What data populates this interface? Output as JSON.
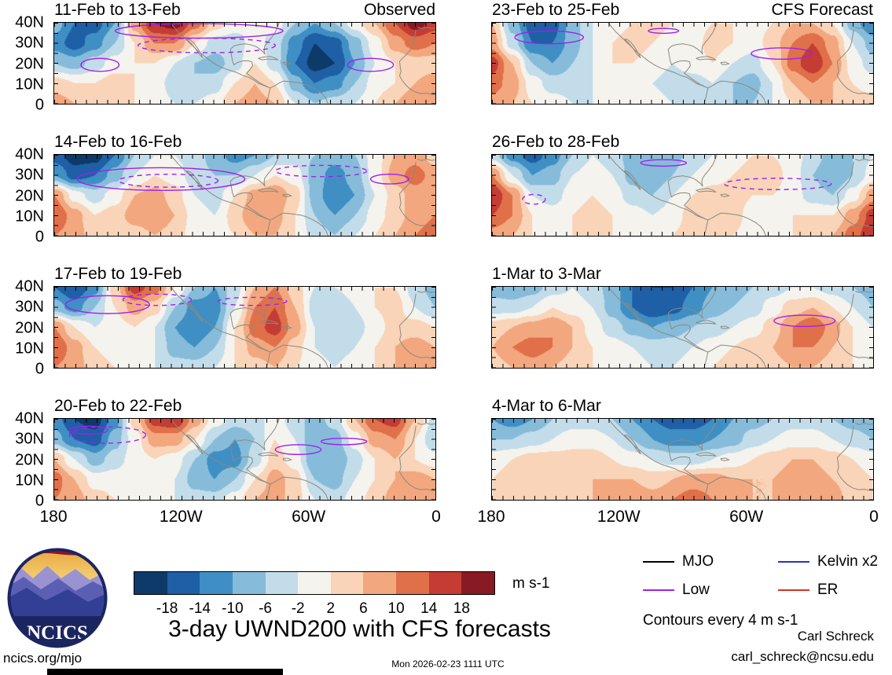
{
  "title": "3-day UWND200 with CFS forecasts",
  "logo": {
    "text": "NCICS"
  },
  "footer": {
    "left": "ncics.org/mjo",
    "timestamp": "Mon 2026-02-23 1111 UTC",
    "credit_name": "Carl Schreck",
    "credit_email": "carl_schreck@ncsu.edu"
  },
  "legend": {
    "items": [
      {
        "label": "MJO",
        "color": "#000000"
      },
      {
        "label": "Kelvin x2",
        "color": "#2233cc"
      },
      {
        "label": "Low",
        "color": "#a020f0"
      },
      {
        "label": "ER",
        "color": "#d63320"
      }
    ]
  },
  "chart_data": {
    "type": "heatmap",
    "variable": "UWND200 3-day anomaly",
    "column_headers": [
      "Observed",
      "CFS Forecast"
    ],
    "x_ticks": [
      "180",
      "120W",
      "60W",
      "0"
    ],
    "y_ticks": [
      "40N",
      "30N",
      "20N",
      "10N",
      "0"
    ],
    "x_range": [
      "180",
      "0"
    ],
    "y_range": [
      "40N",
      "0"
    ],
    "contour_note": "Contours every 4 m s-1",
    "contour_color": "#a020f0",
    "grid_note": "values: approximate anomalies (m s-1) on 20x5 grid, lon 180W to 0 left-right, lat 40N to 0 top-bottom; contours [cx,cy,rx,ry,dashed] in percent of panel",
    "colorbar": {
      "levels": [
        -18,
        -14,
        -10,
        -6,
        -2,
        2,
        6,
        10,
        14,
        18
      ],
      "labels": [
        "-18",
        "-14",
        "-10",
        "-6",
        "-2",
        "2",
        "6",
        "10",
        "14",
        "18"
      ],
      "colors": [
        "#0d3a69",
        "#1e5fa5",
        "#3f8fc5",
        "#86bcd9",
        "#c3dcea",
        "#f5f3ee",
        "#f9d4b8",
        "#f2a77f",
        "#e0704a",
        "#c43c33",
        "#871a22"
      ],
      "units_label": "m s-1"
    },
    "panels": [
      {
        "title": "11-Feb to 13-Feb",
        "header": "Observed",
        "values": [
          [
            -8,
            -14,
            -16,
            -10,
            8,
            18,
            20,
            12,
            4,
            0,
            -2,
            0,
            -6,
            -10,
            -6,
            0,
            6,
            14,
            20,
            16
          ],
          [
            -12,
            -16,
            -12,
            -6,
            2,
            10,
            10,
            2,
            -4,
            -4,
            0,
            -4,
            -12,
            -18,
            -16,
            -8,
            0,
            8,
            12,
            10
          ],
          [
            -6,
            -8,
            -4,
            0,
            2,
            2,
            -2,
            -6,
            -8,
            -4,
            2,
            -4,
            -14,
            -20,
            -18,
            -10,
            -2,
            2,
            4,
            4
          ],
          [
            4,
            2,
            2,
            4,
            2,
            0,
            -4,
            -6,
            -4,
            2,
            6,
            2,
            -8,
            -14,
            -12,
            -6,
            0,
            2,
            6,
            8
          ],
          [
            8,
            6,
            4,
            4,
            2,
            0,
            -2,
            -2,
            0,
            6,
            8,
            6,
            -2,
            -6,
            -4,
            -2,
            2,
            6,
            10,
            10
          ]
        ],
        "contours": [
          [
            38,
            10,
            22,
            9,
            0
          ],
          [
            40,
            28,
            18,
            9,
            1
          ],
          [
            12,
            52,
            5,
            8,
            0
          ],
          [
            83,
            52,
            6,
            8,
            0
          ]
        ]
      },
      {
        "title": "14-Feb to 16-Feb",
        "header": "",
        "values": [
          [
            -16,
            -20,
            -20,
            -14,
            -6,
            -2,
            -2,
            -4,
            -8,
            -12,
            -10,
            -6,
            -4,
            -6,
            -8,
            -6,
            0,
            6,
            8,
            4
          ],
          [
            -10,
            -16,
            -14,
            -8,
            -2,
            2,
            0,
            -4,
            -6,
            -6,
            -2,
            2,
            0,
            -8,
            -12,
            -8,
            0,
            8,
            12,
            8
          ],
          [
            10,
            0,
            -4,
            0,
            6,
            8,
            4,
            -2,
            -4,
            2,
            8,
            10,
            4,
            -8,
            -14,
            -10,
            -2,
            4,
            8,
            6
          ],
          [
            14,
            8,
            2,
            4,
            8,
            10,
            6,
            0,
            -2,
            4,
            10,
            8,
            2,
            -6,
            -10,
            -6,
            0,
            4,
            8,
            10
          ],
          [
            10,
            8,
            4,
            2,
            4,
            6,
            4,
            0,
            0,
            2,
            6,
            6,
            2,
            -4,
            -6,
            -2,
            2,
            6,
            10,
            12
          ]
        ],
        "contours": [
          [
            28,
            30,
            22,
            14,
            0
          ],
          [
            30,
            32,
            13,
            8,
            1
          ],
          [
            70,
            20,
            12,
            7,
            1
          ],
          [
            88,
            30,
            5,
            6,
            0
          ]
        ]
      },
      {
        "title": "17-Feb to 19-Feb",
        "header": "",
        "values": [
          [
            -14,
            -18,
            -12,
            4,
            16,
            12,
            2,
            -6,
            -10,
            -4,
            6,
            10,
            4,
            -2,
            -2,
            0,
            2,
            2,
            -4,
            -8
          ],
          [
            -8,
            -12,
            -6,
            2,
            8,
            4,
            -6,
            -12,
            -12,
            -2,
            10,
            14,
            6,
            -4,
            -6,
            -2,
            2,
            4,
            -2,
            -6
          ],
          [
            10,
            2,
            -2,
            0,
            2,
            -2,
            -10,
            -14,
            -10,
            2,
            12,
            16,
            8,
            -2,
            -6,
            -4,
            0,
            4,
            4,
            2
          ],
          [
            14,
            8,
            2,
            0,
            0,
            -2,
            -8,
            -10,
            -6,
            2,
            8,
            10,
            4,
            -2,
            -4,
            -2,
            2,
            6,
            8,
            6
          ],
          [
            10,
            8,
            4,
            2,
            0,
            -2,
            -4,
            -4,
            -2,
            2,
            4,
            6,
            2,
            0,
            -2,
            0,
            2,
            6,
            10,
            8
          ]
        ],
        "contours": [
          [
            14,
            22,
            11,
            11,
            0
          ],
          [
            27,
            16,
            9,
            7,
            1
          ],
          [
            52,
            18,
            9,
            5,
            1
          ]
        ]
      },
      {
        "title": "20-Feb to 22-Feb",
        "header": "",
        "values": [
          [
            -12,
            -18,
            -20,
            -12,
            4,
            16,
            18,
            8,
            0,
            -4,
            -4,
            0,
            -4,
            -8,
            -4,
            6,
            14,
            16,
            6,
            -4
          ],
          [
            -8,
            -14,
            -16,
            -8,
            0,
            8,
            8,
            2,
            -6,
            -10,
            -6,
            2,
            -2,
            -10,
            -8,
            0,
            8,
            10,
            2,
            -6
          ],
          [
            6,
            -2,
            -8,
            -4,
            0,
            2,
            0,
            -6,
            -12,
            -12,
            -4,
            4,
            0,
            -10,
            -10,
            -4,
            2,
            6,
            2,
            0
          ],
          [
            12,
            6,
            0,
            0,
            2,
            2,
            -2,
            -8,
            -10,
            -6,
            2,
            8,
            4,
            -6,
            -8,
            -2,
            2,
            6,
            8,
            6
          ],
          [
            10,
            8,
            4,
            2,
            2,
            0,
            -2,
            -4,
            -4,
            0,
            6,
            8,
            4,
            -2,
            -4,
            0,
            4,
            8,
            10,
            8
          ]
        ],
        "contours": [
          [
            14,
            20,
            10,
            10,
            1
          ],
          [
            9,
            14,
            5,
            5,
            0
          ],
          [
            64,
            38,
            6,
            6,
            0
          ],
          [
            76,
            28,
            6,
            4,
            0
          ]
        ]
      },
      {
        "title": "23-Feb to 25-Feb",
        "header": "CFS Forecast",
        "values": [
          [
            6,
            -8,
            -16,
            -16,
            -8,
            -2,
            0,
            2,
            4,
            2,
            0,
            2,
            2,
            0,
            2,
            6,
            6,
            2,
            -8,
            -14
          ],
          [
            8,
            -4,
            -14,
            -14,
            -8,
            -2,
            2,
            4,
            2,
            0,
            0,
            4,
            2,
            0,
            4,
            10,
            14,
            8,
            -2,
            -8
          ],
          [
            16,
            6,
            -6,
            -10,
            -6,
            -2,
            2,
            2,
            0,
            -2,
            0,
            2,
            -2,
            -4,
            2,
            12,
            18,
            10,
            0,
            -4
          ],
          [
            12,
            8,
            0,
            -4,
            -4,
            -2,
            0,
            0,
            -2,
            -4,
            -4,
            -2,
            -6,
            -8,
            -2,
            6,
            10,
            6,
            2,
            0
          ],
          [
            8,
            6,
            2,
            0,
            -2,
            -2,
            0,
            0,
            0,
            -2,
            -4,
            -4,
            -6,
            -6,
            -2,
            2,
            6,
            6,
            4,
            4
          ]
        ],
        "contours": [
          [
            15,
            18,
            9,
            8,
            0
          ],
          [
            76,
            38,
            8,
            7,
            0
          ],
          [
            45,
            10,
            4,
            3,
            0
          ]
        ]
      },
      {
        "title": "26-Feb to 28-Feb",
        "header": "",
        "values": [
          [
            -4,
            -12,
            -16,
            -12,
            -6,
            -2,
            -4,
            -8,
            -10,
            -8,
            -4,
            -2,
            0,
            2,
            2,
            0,
            -4,
            -8,
            -6,
            -2
          ],
          [
            10,
            -2,
            -10,
            -8,
            -2,
            0,
            -2,
            -8,
            -10,
            -6,
            -2,
            0,
            2,
            4,
            4,
            0,
            -6,
            -10,
            -6,
            0
          ],
          [
            18,
            10,
            -2,
            -4,
            0,
            2,
            0,
            -4,
            -6,
            -2,
            2,
            4,
            4,
            2,
            2,
            0,
            -4,
            -6,
            0,
            8
          ],
          [
            14,
            10,
            2,
            0,
            2,
            4,
            2,
            0,
            -2,
            0,
            4,
            6,
            4,
            0,
            0,
            2,
            2,
            2,
            8,
            16
          ],
          [
            8,
            6,
            2,
            0,
            2,
            4,
            2,
            0,
            0,
            2,
            4,
            4,
            2,
            0,
            0,
            2,
            4,
            6,
            12,
            18
          ]
        ],
        "contours": [
          [
            45,
            10,
            6,
            4,
            0
          ],
          [
            75,
            36,
            14,
            7,
            1
          ],
          [
            11,
            55,
            3,
            6,
            1
          ]
        ]
      },
      {
        "title": "1-Mar to 3-Mar",
        "header": "",
        "values": [
          [
            -8,
            -10,
            -8,
            -4,
            -2,
            -4,
            -8,
            -14,
            -18,
            -18,
            -14,
            -10,
            -8,
            -6,
            -4,
            -2,
            -2,
            -4,
            -6,
            -8
          ],
          [
            -4,
            -4,
            -2,
            2,
            0,
            -2,
            -8,
            -14,
            -18,
            -16,
            -12,
            -8,
            -6,
            -4,
            0,
            4,
            6,
            2,
            -2,
            -6
          ],
          [
            4,
            6,
            8,
            10,
            6,
            0,
            -4,
            -8,
            -10,
            -8,
            -6,
            -4,
            -2,
            0,
            4,
            10,
            14,
            8,
            2,
            -2
          ],
          [
            6,
            10,
            12,
            10,
            6,
            2,
            0,
            -2,
            -4,
            -4,
            -2,
            0,
            2,
            4,
            6,
            10,
            10,
            6,
            2,
            0
          ],
          [
            4,
            6,
            8,
            6,
            4,
            2,
            0,
            0,
            -2,
            -2,
            0,
            2,
            4,
            4,
            4,
            6,
            6,
            4,
            2,
            0
          ]
        ],
        "contours": [
          [
            82,
            42,
            8,
            7,
            0
          ]
        ]
      },
      {
        "title": "4-Mar to 6-Mar",
        "header": "",
        "values": [
          [
            -10,
            -12,
            -10,
            -6,
            -4,
            -4,
            -6,
            -10,
            -14,
            -16,
            -16,
            -14,
            -10,
            -8,
            -6,
            -4,
            -4,
            -6,
            -8,
            -10
          ],
          [
            -6,
            -6,
            -4,
            -2,
            0,
            0,
            -2,
            -6,
            -10,
            -12,
            -12,
            -10,
            -8,
            -4,
            -2,
            0,
            0,
            -2,
            -4,
            -6
          ],
          [
            0,
            2,
            4,
            4,
            4,
            4,
            2,
            0,
            -2,
            -4,
            -4,
            -2,
            0,
            2,
            4,
            6,
            6,
            4,
            2,
            0
          ],
          [
            2,
            4,
            6,
            6,
            6,
            6,
            6,
            6,
            4,
            6,
            8,
            8,
            6,
            6,
            6,
            8,
            8,
            6,
            4,
            2
          ],
          [
            2,
            4,
            4,
            4,
            4,
            6,
            8,
            10,
            8,
            10,
            12,
            10,
            8,
            6,
            6,
            8,
            10,
            8,
            4,
            2
          ]
        ],
        "contours": []
      }
    ]
  }
}
